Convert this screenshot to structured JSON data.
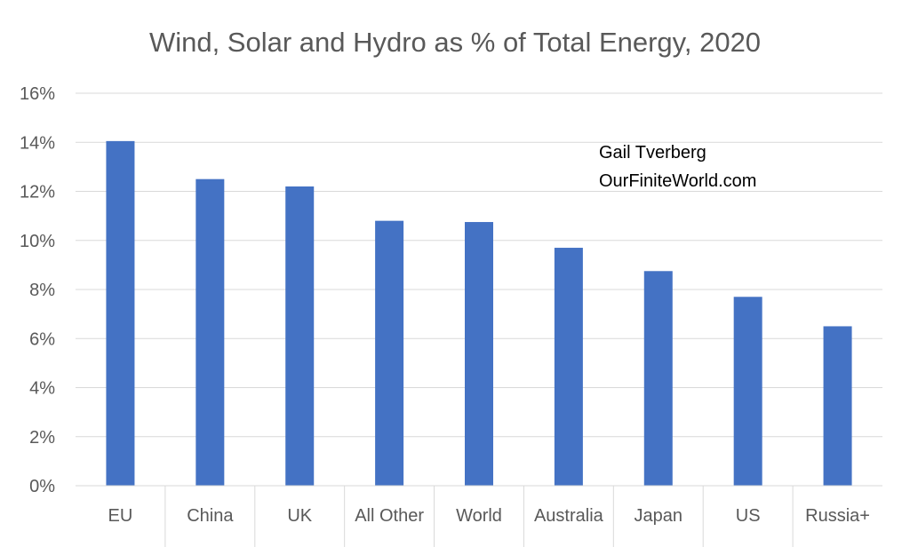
{
  "chart_data": {
    "type": "bar",
    "title": "Wind, Solar and Hydro as % of Total Energy, 2020",
    "categories": [
      "EU",
      "China",
      "UK",
      "All Other",
      "World",
      "Australia",
      "Japan",
      "US",
      "Russia+"
    ],
    "values": [
      14.05,
      12.5,
      12.2,
      10.8,
      10.75,
      9.7,
      8.75,
      7.7,
      6.5
    ],
    "yticks": [
      "0%",
      "2%",
      "4%",
      "6%",
      "8%",
      "10%",
      "12%",
      "14%",
      "16%"
    ],
    "ylim": [
      0,
      16
    ],
    "bar_color": "#4472c4",
    "grid": true,
    "annotation": [
      "Gail Tverberg",
      "OurFiniteWorld.com"
    ]
  }
}
